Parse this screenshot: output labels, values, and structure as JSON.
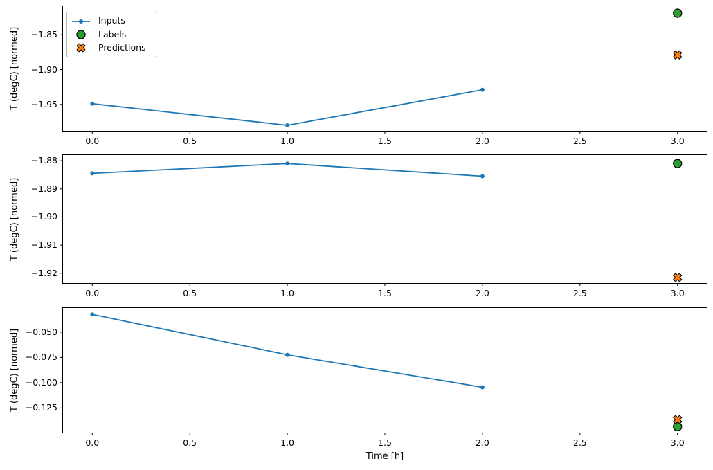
{
  "figure": {
    "background": "#ffffff",
    "shared_ylabel": "T (degC) [normed]",
    "shared_xlabel": "Time [h]",
    "colors": {
      "inputs": "#1f77b4",
      "labels": "#2ca02c",
      "predictions": "#ff7f0e",
      "marker_edge": "#000000",
      "axes": "#000000",
      "legend_border": "#b3b3b3"
    },
    "legend": {
      "position": "upper left",
      "items": [
        {
          "label": "Inputs",
          "marker": "line-dot",
          "color": "#1f77b4"
        },
        {
          "label": "Labels",
          "marker": "circle",
          "color": "#2ca02c"
        },
        {
          "label": "Predictions",
          "marker": "X",
          "color": "#ff7f0e"
        }
      ]
    }
  },
  "chart_data": [
    {
      "type": "line",
      "ylabel": "T (degC) [normed]",
      "xlabel": "",
      "grid": false,
      "legend_visible": true,
      "xlim": [
        -0.15,
        3.15
      ],
      "ylim": [
        -1.988,
        -1.809
      ],
      "xtick_values": [
        0,
        0.5,
        1,
        1.5,
        2,
        2.5,
        3
      ],
      "xtick_labels": [
        "0.0",
        "0.5",
        "1.0",
        "1.5",
        "2.0",
        "2.5",
        "3.0"
      ],
      "ytick_values": [
        -1.85,
        -1.9,
        -1.95
      ],
      "ytick_labels": [
        "−1.85",
        "−1.90",
        "−1.95"
      ],
      "series": [
        {
          "name": "Inputs",
          "type": "line",
          "marker": "dot",
          "color": "#1f77b4",
          "x": [
            0,
            1,
            2
          ],
          "y": [
            -1.949,
            -1.98,
            -1.929
          ]
        },
        {
          "name": "Labels",
          "type": "scatter",
          "marker": "circle",
          "color": "#2ca02c",
          "x": [
            3
          ],
          "y": [
            -1.819
          ]
        },
        {
          "name": "Predictions",
          "type": "scatter",
          "marker": "X",
          "color": "#ff7f0e",
          "x": [
            3
          ],
          "y": [
            -1.879
          ]
        }
      ]
    },
    {
      "type": "line",
      "ylabel": "T (degC) [normed]",
      "xlabel": "",
      "grid": false,
      "legend_visible": false,
      "xlim": [
        -0.15,
        3.15
      ],
      "ylim": [
        -1.9235,
        -1.878
      ],
      "xtick_values": [
        0,
        0.5,
        1,
        1.5,
        2,
        2.5,
        3
      ],
      "xtick_labels": [
        "0.0",
        "0.5",
        "1.0",
        "1.5",
        "2.0",
        "2.5",
        "3.0"
      ],
      "ytick_values": [
        -1.88,
        -1.89,
        -1.9,
        -1.91,
        -1.92
      ],
      "ytick_labels": [
        "−1.88",
        "−1.89",
        "−1.90",
        "−1.91",
        "−1.92"
      ],
      "series": [
        {
          "name": "Inputs",
          "type": "line",
          "marker": "dot",
          "color": "#1f77b4",
          "x": [
            0,
            1,
            2
          ],
          "y": [
            -1.8845,
            -1.881,
            -1.8855
          ]
        },
        {
          "name": "Labels",
          "type": "scatter",
          "marker": "circle",
          "color": "#2ca02c",
          "x": [
            3
          ],
          "y": [
            -1.881
          ]
        },
        {
          "name": "Predictions",
          "type": "scatter",
          "marker": "X",
          "color": "#ff7f0e",
          "x": [
            3
          ],
          "y": [
            -1.9215
          ]
        }
      ]
    },
    {
      "type": "line",
      "ylabel": "T (degC) [normed]",
      "xlabel": "Time [h]",
      "grid": false,
      "legend_visible": false,
      "xlim": [
        -0.15,
        3.15
      ],
      "ylim": [
        -0.1494,
        -0.0261
      ],
      "xtick_values": [
        0,
        0.5,
        1,
        1.5,
        2,
        2.5,
        3
      ],
      "xtick_labels": [
        "0.0",
        "0.5",
        "1.0",
        "1.5",
        "2.0",
        "2.5",
        "3.0"
      ],
      "ytick_values": [
        -0.05,
        -0.075,
        -0.1,
        -0.125
      ],
      "ytick_labels": [
        "−0.050",
        "−0.075",
        "−0.100",
        "−0.125"
      ],
      "series": [
        {
          "name": "Inputs",
          "type": "line",
          "marker": "dot",
          "color": "#1f77b4",
          "x": [
            0,
            1,
            2
          ],
          "y": [
            -0.0324,
            -0.0724,
            -0.1045
          ]
        },
        {
          "name": "Labels",
          "type": "scatter",
          "marker": "circle",
          "color": "#2ca02c",
          "x": [
            3
          ],
          "y": [
            -0.1435
          ]
        },
        {
          "name": "Predictions",
          "type": "scatter",
          "marker": "X",
          "color": "#ff7f0e",
          "x": [
            3
          ],
          "y": [
            -0.1365
          ]
        }
      ]
    }
  ]
}
